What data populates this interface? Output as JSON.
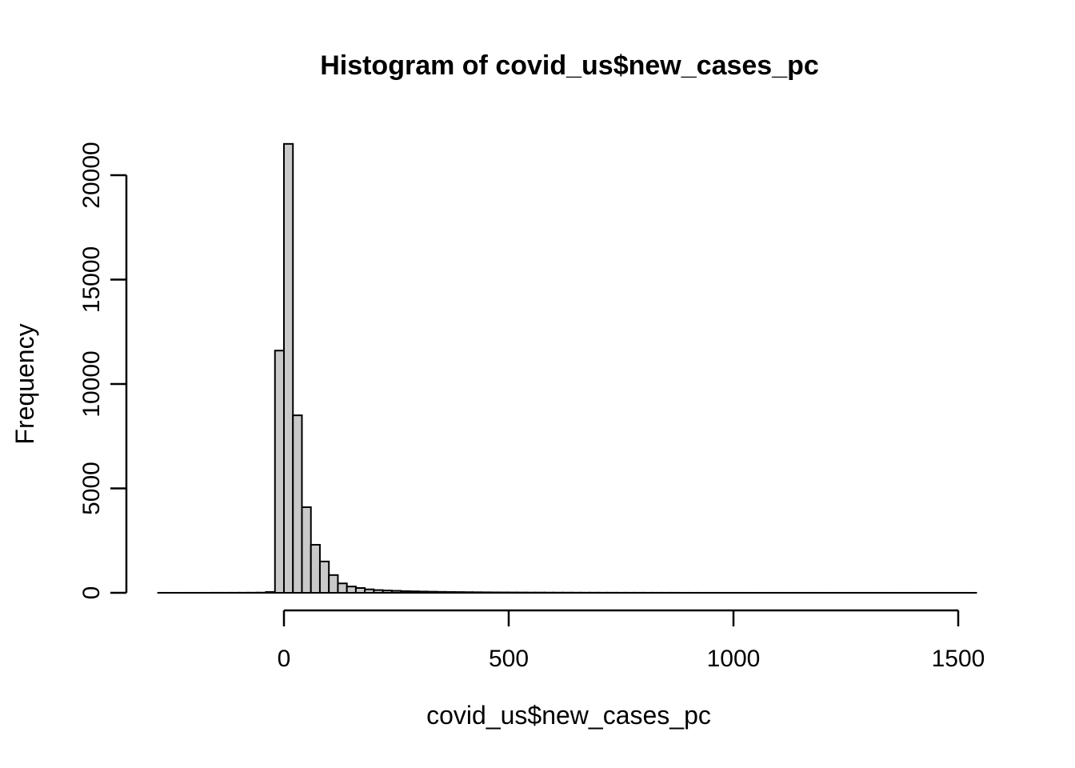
{
  "chart_data": {
    "type": "bar",
    "subtype": "histogram",
    "title": "Histogram of covid_us$new_cases_pc",
    "xlabel": "covid_us$new_cases_pc",
    "ylabel": "Frequency",
    "x_ticks": [
      0,
      500,
      1000,
      1500
    ],
    "y_ticks": [
      0,
      5000,
      10000,
      15000,
      20000
    ],
    "xlim": [
      0,
      1500
    ],
    "ylim": [
      0,
      20000
    ],
    "grid": false,
    "legend": "none",
    "bar_fill_color": "#c9c9c9",
    "bar_stroke_color": "#000000",
    "axis_color": "#000000",
    "bins": {
      "start": -280,
      "width": 20,
      "counts": [
        1,
        1,
        1,
        1,
        2,
        2,
        3,
        3,
        4,
        5,
        6,
        10,
        40,
        11600,
        21500,
        8500,
        4100,
        2300,
        1500,
        850,
        450,
        300,
        230,
        165,
        130,
        110,
        95,
        80,
        70,
        60,
        52,
        45,
        40,
        35,
        30,
        26,
        23,
        20,
        18,
        16,
        14,
        12,
        11,
        10,
        9,
        8,
        7,
        6,
        6,
        5,
        5,
        4,
        4,
        4,
        3,
        3,
        3,
        3,
        2,
        2,
        2,
        2,
        2,
        1,
        1,
        1,
        1,
        1,
        1,
        1,
        1,
        1,
        1,
        1,
        1,
        1,
        1,
        1,
        1,
        1,
        1,
        1,
        1,
        1,
        1,
        1,
        1,
        1,
        1,
        1,
        1
      ]
    }
  }
}
